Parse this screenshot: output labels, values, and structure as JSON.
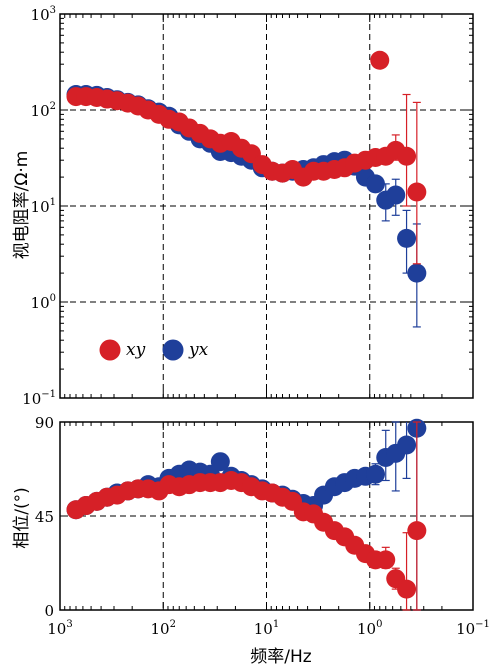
{
  "chart_data": [
    {
      "type": "scatter",
      "xscale": "log",
      "yscale": "log",
      "xlim": [
        1000,
        0.1
      ],
      "ylim": [
        0.1,
        1000
      ],
      "grid": true,
      "ylabel": "视电阻率/Ω·m",
      "y_tick_labels": [
        {
          "base": "10",
          "exp": "−1"
        },
        {
          "base": "10",
          "exp": "0"
        },
        {
          "base": "10",
          "exp": "1"
        },
        {
          "base": "10",
          "exp": "2"
        },
        {
          "base": "10",
          "exp": "3"
        }
      ],
      "legend": {
        "placement": "bottom-left",
        "entries": [
          {
            "label": "xy",
            "color": "#d62027"
          },
          {
            "label": "yx",
            "color": "#1f3f9a"
          }
        ]
      },
      "series": [
        {
          "name": "yx",
          "color": "#1f3f9a",
          "points": [
            {
              "x": 700,
              "y": 145
            },
            {
              "x": 560,
              "y": 145
            },
            {
              "x": 440,
              "y": 142
            },
            {
              "x": 350,
              "y": 135
            },
            {
              "x": 280,
              "y": 128
            },
            {
              "x": 220,
              "y": 120
            },
            {
              "x": 175,
              "y": 113
            },
            {
              "x": 140,
              "y": 103
            },
            {
              "x": 110,
              "y": 95
            },
            {
              "x": 88,
              "y": 86
            },
            {
              "x": 70,
              "y": 70
            },
            {
              "x": 56,
              "y": 60
            },
            {
              "x": 44,
              "y": 50
            },
            {
              "x": 35,
              "y": 45
            },
            {
              "x": 28,
              "y": 37
            },
            {
              "x": 22,
              "y": 36
            },
            {
              "x": 17.5,
              "y": 33
            },
            {
              "x": 14,
              "y": 30
            },
            {
              "x": 11,
              "y": 25
            },
            {
              "x": 8.8,
              "y": 23
            },
            {
              "x": 7,
              "y": 22
            },
            {
              "x": 5.6,
              "y": 23
            },
            {
              "x": 4.4,
              "y": 24
            },
            {
              "x": 3.5,
              "y": 25
            },
            {
              "x": 2.8,
              "y": 27
            },
            {
              "x": 2.2,
              "y": 29
            },
            {
              "x": 1.75,
              "y": 30
            },
            {
              "x": 1.4,
              "y": 26
            },
            {
              "x": 1.1,
              "y": 20
            },
            {
              "x": 0.88,
              "y": 17,
              "err": [
                14,
                20
              ]
            },
            {
              "x": 0.7,
              "y": 11.5,
              "err": [
                7,
                17
              ]
            },
            {
              "x": 0.56,
              "y": 13,
              "err": [
                8,
                19
              ]
            },
            {
              "x": 0.44,
              "y": 4.6,
              "err": [
                2,
                9
              ]
            },
            {
              "x": 0.35,
              "y": 2.0,
              "err": [
                0.55,
                6.5
              ]
            }
          ]
        },
        {
          "name": "xy",
          "color": "#d62027",
          "points": [
            {
              "x": 700,
              "y": 138
            },
            {
              "x": 560,
              "y": 138
            },
            {
              "x": 440,
              "y": 135
            },
            {
              "x": 350,
              "y": 130
            },
            {
              "x": 280,
              "y": 125
            },
            {
              "x": 220,
              "y": 118
            },
            {
              "x": 175,
              "y": 110
            },
            {
              "x": 140,
              "y": 100
            },
            {
              "x": 110,
              "y": 90
            },
            {
              "x": 88,
              "y": 80
            },
            {
              "x": 70,
              "y": 75
            },
            {
              "x": 56,
              "y": 65
            },
            {
              "x": 44,
              "y": 57
            },
            {
              "x": 35,
              "y": 50
            },
            {
              "x": 28,
              "y": 45
            },
            {
              "x": 22,
              "y": 47
            },
            {
              "x": 17.5,
              "y": 40
            },
            {
              "x": 14,
              "y": 35
            },
            {
              "x": 11,
              "y": 27
            },
            {
              "x": 8.8,
              "y": 23
            },
            {
              "x": 7,
              "y": 22
            },
            {
              "x": 5.6,
              "y": 24
            },
            {
              "x": 4.4,
              "y": 20
            },
            {
              "x": 3.5,
              "y": 23
            },
            {
              "x": 2.8,
              "y": 23
            },
            {
              "x": 2.2,
              "y": 24
            },
            {
              "x": 1.75,
              "y": 25
            },
            {
              "x": 1.4,
              "y": 28
            },
            {
              "x": 1.1,
              "y": 30
            },
            {
              "x": 0.88,
              "y": 32
            },
            {
              "x": 0.8,
              "y": 330
            },
            {
              "x": 0.7,
              "y": 33,
              "err": [
                28,
                40
              ]
            },
            {
              "x": 0.56,
              "y": 38,
              "err": [
                30,
                55
              ]
            },
            {
              "x": 0.44,
              "y": 33,
              "err": [
                10,
                145
              ]
            },
            {
              "x": 0.35,
              "y": 14,
              "err": [
                2.5,
                120
              ]
            }
          ]
        }
      ]
    },
    {
      "type": "scatter",
      "xscale": "log",
      "xlim": [
        1000,
        0.1
      ],
      "ylim": [
        0,
        90
      ],
      "grid": true,
      "xlabel": "频率/Hz",
      "ylabel": "相位/(°)",
      "y_ticks": [
        "0",
        "45",
        "90"
      ],
      "x_tick_labels": [
        {
          "base": "10",
          "exp": "3"
        },
        {
          "base": "10",
          "exp": "2"
        },
        {
          "base": "10",
          "exp": "1"
        },
        {
          "base": "10",
          "exp": "0"
        },
        {
          "base": "10",
          "exp": "−1"
        }
      ],
      "series": [
        {
          "name": "yx",
          "color": "#1f3f9a",
          "points": [
            {
              "x": 700,
              "y": 48
            },
            {
              "x": 560,
              "y": 50
            },
            {
              "x": 440,
              "y": 52
            },
            {
              "x": 350,
              "y": 54
            },
            {
              "x": 280,
              "y": 56
            },
            {
              "x": 220,
              "y": 57
            },
            {
              "x": 175,
              "y": 58
            },
            {
              "x": 140,
              "y": 60
            },
            {
              "x": 110,
              "y": 59
            },
            {
              "x": 88,
              "y": 63
            },
            {
              "x": 70,
              "y": 65
            },
            {
              "x": 56,
              "y": 67
            },
            {
              "x": 44,
              "y": 66
            },
            {
              "x": 35,
              "y": 65
            },
            {
              "x": 28,
              "y": 71
            },
            {
              "x": 22,
              "y": 64
            },
            {
              "x": 17.5,
              "y": 62
            },
            {
              "x": 14,
              "y": 60
            },
            {
              "x": 11,
              "y": 58
            },
            {
              "x": 8.8,
              "y": 56
            },
            {
              "x": 7,
              "y": 55
            },
            {
              "x": 5.6,
              "y": 53
            },
            {
              "x": 4.4,
              "y": 51
            },
            {
              "x": 3.5,
              "y": 50
            },
            {
              "x": 2.8,
              "y": 55
            },
            {
              "x": 2.2,
              "y": 59
            },
            {
              "x": 1.75,
              "y": 61
            },
            {
              "x": 1.4,
              "y": 63
            },
            {
              "x": 1.1,
              "y": 64
            },
            {
              "x": 0.88,
              "y": 65,
              "err": [
                60,
                70
              ]
            },
            {
              "x": 0.7,
              "y": 73,
              "err": [
                62,
                86
              ]
            },
            {
              "x": 0.56,
              "y": 75,
              "err": [
                57,
                90
              ]
            },
            {
              "x": 0.44,
              "y": 79,
              "err": [
                63,
                92
              ]
            },
            {
              "x": 0.35,
              "y": 87,
              "err": [
                0,
                92
              ]
            }
          ]
        },
        {
          "name": "xy",
          "color": "#d62027",
          "points": [
            {
              "x": 700,
              "y": 48
            },
            {
              "x": 560,
              "y": 50
            },
            {
              "x": 440,
              "y": 52
            },
            {
              "x": 350,
              "y": 54
            },
            {
              "x": 280,
              "y": 55
            },
            {
              "x": 220,
              "y": 57
            },
            {
              "x": 175,
              "y": 58
            },
            {
              "x": 140,
              "y": 58
            },
            {
              "x": 110,
              "y": 57
            },
            {
              "x": 88,
              "y": 60
            },
            {
              "x": 70,
              "y": 59
            },
            {
              "x": 56,
              "y": 60
            },
            {
              "x": 44,
              "y": 61
            },
            {
              "x": 35,
              "y": 61
            },
            {
              "x": 28,
              "y": 61
            },
            {
              "x": 22,
              "y": 62
            },
            {
              "x": 17.5,
              "y": 61
            },
            {
              "x": 14,
              "y": 59
            },
            {
              "x": 11,
              "y": 57
            },
            {
              "x": 8.8,
              "y": 56
            },
            {
              "x": 7,
              "y": 54
            },
            {
              "x": 5.6,
              "y": 52
            },
            {
              "x": 4.4,
              "y": 47
            },
            {
              "x": 3.5,
              "y": 46
            },
            {
              "x": 2.8,
              "y": 42
            },
            {
              "x": 2.2,
              "y": 38
            },
            {
              "x": 1.75,
              "y": 35
            },
            {
              "x": 1.4,
              "y": 31
            },
            {
              "x": 1.1,
              "y": 27
            },
            {
              "x": 0.88,
              "y": 24
            },
            {
              "x": 0.7,
              "y": 24,
              "err": [
                20,
                30
              ]
            },
            {
              "x": 0.56,
              "y": 15,
              "err": [
                10,
                20
              ]
            },
            {
              "x": 0.44,
              "y": 10,
              "err": [
                0,
                37
              ]
            },
            {
              "x": 0.35,
              "y": 38,
              "err": [
                0,
                90
              ]
            }
          ]
        }
      ]
    }
  ]
}
